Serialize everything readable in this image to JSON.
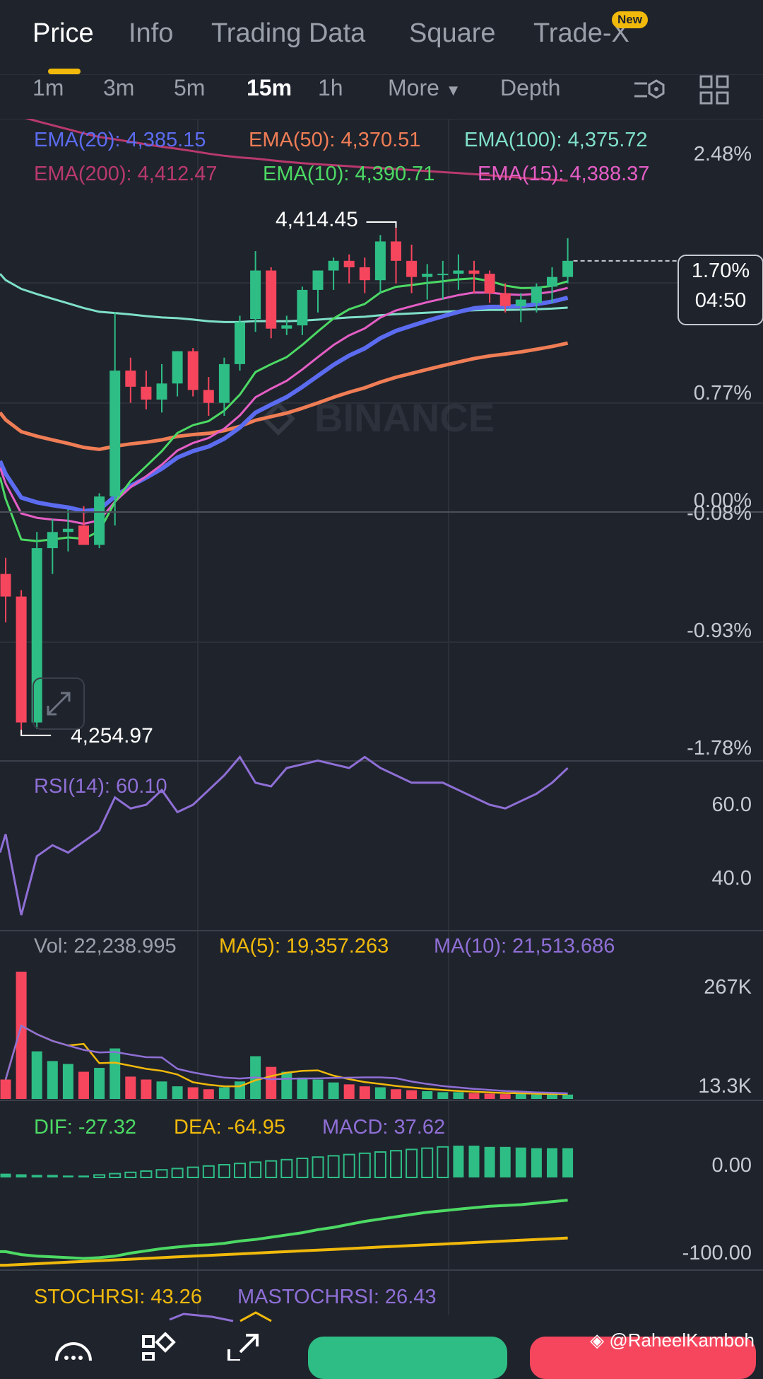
{
  "tabs": [
    {
      "label": "Price",
      "active": true
    },
    {
      "label": "Info",
      "active": false
    },
    {
      "label": "Trading Data",
      "active": false
    },
    {
      "label": "Square",
      "active": false
    },
    {
      "label": "Trade-X",
      "active": false
    }
  ],
  "new_badge": "New",
  "intervals": [
    {
      "label": "1m",
      "active": false
    },
    {
      "label": "3m",
      "active": false
    },
    {
      "label": "5m",
      "active": false
    },
    {
      "label": "15m",
      "active": true
    },
    {
      "label": "1h",
      "active": false
    },
    {
      "label": "More",
      "active": false
    },
    {
      "label": "Depth",
      "active": false
    }
  ],
  "ema": [
    {
      "text": "EMA(20): 4,385.15",
      "color": "#5b6cf0"
    },
    {
      "text": "EMA(50): 4,370.51",
      "color": "#ef7d55"
    },
    {
      "text": "EMA(100): 4,375.72",
      "color": "#7fe0c9"
    },
    {
      "text": "EMA(200): 4,412.47",
      "color": "#b8396d"
    },
    {
      "text": "EMA(10): 4,390.71",
      "color": "#4cd964"
    },
    {
      "text": "EMA(15): 4,388.37",
      "color": "#e45ec5"
    }
  ],
  "price_axis": [
    "2.48%",
    "0.77%",
    "0.00%",
    "-0.08%",
    "-0.93%",
    "-1.78%"
  ],
  "current_price_box": {
    "percent": "1.70%",
    "countdown": "04:50"
  },
  "high_label": "4,414.45",
  "low_label": "4,254.97",
  "watermark_logo": "BINANCE",
  "rsi": {
    "label": "RSI(14): 60.10",
    "axis": [
      "60.0",
      "40.0"
    ]
  },
  "volume": {
    "vol": "Vol: 22,238.995",
    "ma5": "MA(5): 19,357.263",
    "ma10": "MA(10): 21,513.686",
    "axis": [
      "267K",
      "13.3K"
    ]
  },
  "macd": {
    "dif": "DIF: -27.32",
    "dea": "DEA: -64.95",
    "macd": "MACD: 37.62",
    "axis": [
      "0.00",
      "-100.00"
    ]
  },
  "stochrsi": {
    "stoch": "STOCHRSI: 43.26",
    "ma": "MASTOCHRSI: 26.43"
  },
  "credit": "@RaheelKamboh",
  "colors": {
    "up": "#2ebd85",
    "down": "#f6465d",
    "accent": "#f0b90b",
    "bg": "#1f232c"
  },
  "chart_data": {
    "type": "candlestick",
    "candles": [
      {
        "o": 4305,
        "h": 4310,
        "l": 4290,
        "c": 4298
      },
      {
        "o": 4298,
        "h": 4300,
        "l": 4255,
        "c": 4259
      },
      {
        "o": 4259,
        "h": 4318,
        "l": 4257,
        "c": 4313
      },
      {
        "o": 4313,
        "h": 4322,
        "l": 4305,
        "c": 4318
      },
      {
        "o": 4318,
        "h": 4325,
        "l": 4312,
        "c": 4319
      },
      {
        "o": 4320,
        "h": 4326,
        "l": 4314,
        "c": 4314
      },
      {
        "o": 4314,
        "h": 4330,
        "l": 4313,
        "c": 4329
      },
      {
        "o": 4329,
        "h": 4386,
        "l": 4320,
        "c": 4368
      },
      {
        "o": 4368,
        "h": 4372,
        "l": 4358,
        "c": 4363
      },
      {
        "o": 4363,
        "h": 4368,
        "l": 4356,
        "c": 4359
      },
      {
        "o": 4359,
        "h": 4370,
        "l": 4355,
        "c": 4364
      },
      {
        "o": 4364,
        "h": 4374,
        "l": 4360,
        "c": 4374
      },
      {
        "o": 4374,
        "h": 4375,
        "l": 4360,
        "c": 4362
      },
      {
        "o": 4362,
        "h": 4366,
        "l": 4354,
        "c": 4358
      },
      {
        "o": 4358,
        "h": 4372,
        "l": 4354,
        "c": 4370
      },
      {
        "o": 4370,
        "h": 4385,
        "l": 4368,
        "c": 4383
      },
      {
        "o": 4384,
        "h": 4405,
        "l": 4380,
        "c": 4399
      },
      {
        "o": 4399,
        "h": 4400,
        "l": 4378,
        "c": 4381
      },
      {
        "o": 4381,
        "h": 4385,
        "l": 4379,
        "c": 4382
      },
      {
        "o": 4382,
        "h": 4394,
        "l": 4379,
        "c": 4393
      },
      {
        "o": 4393,
        "h": 4399,
        "l": 4386,
        "c": 4399
      },
      {
        "o": 4399,
        "h": 4403,
        "l": 4393,
        "c": 4402
      },
      {
        "o": 4402,
        "h": 4404,
        "l": 4395,
        "c": 4400
      },
      {
        "o": 4400,
        "h": 4403,
        "l": 4392,
        "c": 4396
      },
      {
        "o": 4396,
        "h": 4410,
        "l": 4392,
        "c": 4408
      },
      {
        "o": 4408,
        "h": 4414,
        "l": 4395,
        "c": 4402
      },
      {
        "o": 4402,
        "h": 4407,
        "l": 4392,
        "c": 4397
      },
      {
        "o": 4397,
        "h": 4401,
        "l": 4390,
        "c": 4398
      },
      {
        "o": 4398,
        "h": 4402,
        "l": 4390,
        "c": 4398
      },
      {
        "o": 4398,
        "h": 4404,
        "l": 4393,
        "c": 4399
      },
      {
        "o": 4399,
        "h": 4402,
        "l": 4392,
        "c": 4398
      },
      {
        "o": 4398,
        "h": 4399,
        "l": 4389,
        "c": 4392
      },
      {
        "o": 4392,
        "h": 4395,
        "l": 4386,
        "c": 4388
      },
      {
        "o": 4388,
        "h": 4392,
        "l": 4383,
        "c": 4390
      },
      {
        "o": 4389,
        "h": 4395,
        "l": 4386,
        "c": 4394
      },
      {
        "o": 4394,
        "h": 4400,
        "l": 4389,
        "c": 4397
      },
      {
        "o": 4397,
        "h": 4409,
        "l": 4395,
        "c": 4402
      }
    ],
    "volumes": [
      40,
      262,
      98,
      78,
      72,
      56,
      64,
      104,
      46,
      40,
      36,
      26,
      24,
      20,
      24,
      36,
      88,
      66,
      56,
      44,
      40,
      34,
      30,
      26,
      24,
      20,
      18,
      16,
      14,
      14,
      12,
      11,
      10,
      12,
      9,
      10,
      9
    ]
  }
}
